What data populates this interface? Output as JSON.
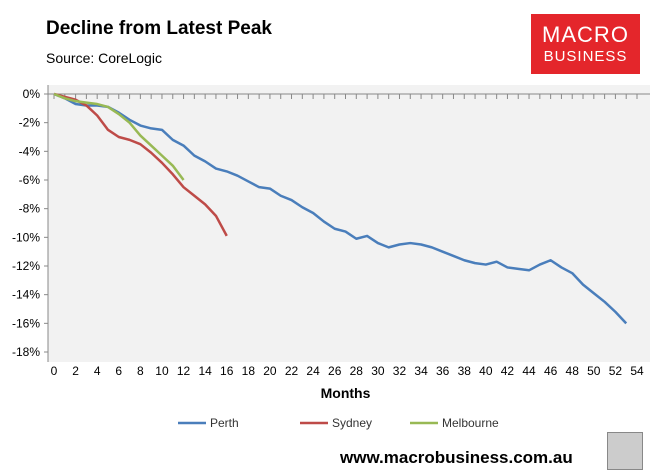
{
  "chart_data": {
    "type": "line",
    "title": "Decline from Latest Peak",
    "subtitle": "Source: CoreLogic",
    "xlabel": "Months",
    "ylabel": "",
    "xlim": [
      0,
      54
    ],
    "ylim": [
      -18,
      0
    ],
    "x_ticks": [
      0,
      2,
      4,
      6,
      8,
      10,
      12,
      14,
      16,
      18,
      20,
      22,
      24,
      26,
      28,
      30,
      32,
      34,
      36,
      38,
      40,
      42,
      44,
      46,
      48,
      50,
      52,
      54
    ],
    "y_ticks": [
      0,
      -2,
      -4,
      -6,
      -8,
      -10,
      -12,
      -14,
      -16,
      -18
    ],
    "y_tick_labels": [
      "0%",
      "-2%",
      "-4%",
      "-6%",
      "-8%",
      "-10%",
      "-12%",
      "-14%",
      "-16%",
      "-18%"
    ],
    "legend_position": "bottom",
    "series": [
      {
        "name": "Perth",
        "color": "#4a7ebb",
        "values": [
          0,
          -0.3,
          -0.7,
          -0.8,
          -0.8,
          -0.9,
          -1.3,
          -1.8,
          -2.2,
          -2.4,
          -2.5,
          -3.2,
          -3.6,
          -4.3,
          -4.7,
          -5.2,
          -5.4,
          -5.7,
          -6.1,
          -6.5,
          -6.6,
          -7.1,
          -7.4,
          -7.9,
          -8.3,
          -8.9,
          -9.4,
          -9.6,
          -10.1,
          -9.9,
          -10.4,
          -10.7,
          -10.5,
          -10.4,
          -10.5,
          -10.7,
          -11.0,
          -11.3,
          -11.6,
          -11.8,
          -11.9,
          -11.7,
          -12.1,
          -12.2,
          -12.3,
          -11.9,
          -11.6,
          -12.1,
          -12.5,
          -13.3,
          -13.9,
          -14.5,
          -15.2,
          -16.0
        ]
      },
      {
        "name": "Sydney",
        "color": "#be4b48",
        "values": [
          0,
          -0.2,
          -0.4,
          -0.8,
          -1.5,
          -2.5,
          -3.0,
          -3.2,
          -3.5,
          -4.1,
          -4.8,
          -5.6,
          -6.5,
          -7.1,
          -7.7,
          -8.5,
          -9.9
        ]
      },
      {
        "name": "Melbourne",
        "color": "#98b954",
        "values": [
          0,
          -0.3,
          -0.5,
          -0.6,
          -0.7,
          -0.9,
          -1.4,
          -2.0,
          -2.9,
          -3.6,
          -4.3,
          -5.0,
          -6.0
        ]
      }
    ]
  },
  "branding": {
    "logo_line1": "MACRO",
    "logo_line2": "BUSINESS",
    "url": "www.macrobusiness.com.au"
  }
}
